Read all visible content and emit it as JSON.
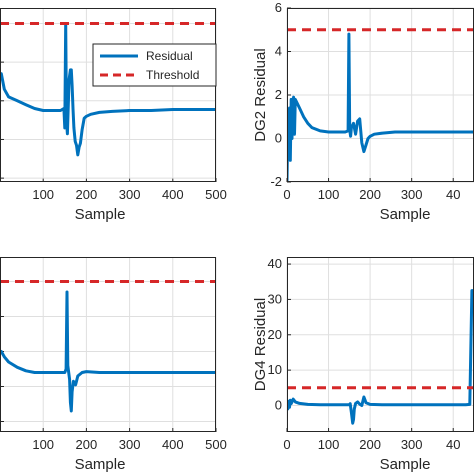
{
  "colors": {
    "residual": "#0072BD",
    "threshold": "#D62728",
    "grid": "#DFDFDF",
    "axis": "#262626"
  },
  "legend": {
    "residual_label": "Residual",
    "threshold_label": "Threshold",
    "placement": "top-right of upper-left panel"
  },
  "chart_data": [
    {
      "type": "line",
      "panel": "top-left",
      "xlabel": "Sample",
      "ylabel": "",
      "xlim": [
        0,
        500
      ],
      "xticks": [
        "100",
        "200",
        "300",
        "400",
        "500"
      ],
      "threshold": 6.0,
      "grid": true,
      "series": [
        {
          "name": "Residual",
          "x": [
            0,
            3,
            10,
            20,
            40,
            60,
            80,
            100,
            120,
            140,
            148,
            150,
            152,
            154,
            156,
            158,
            160,
            163,
            165,
            167,
            169,
            171,
            174,
            177,
            180,
            183,
            186,
            190,
            195,
            200,
            210,
            230,
            260,
            300,
            350,
            400,
            450,
            500
          ],
          "y": [
            3.2,
            3.4,
            2.6,
            2.2,
            2.0,
            1.8,
            1.6,
            1.5,
            1.5,
            1.5,
            1.6,
            0.6,
            6.0,
            0.9,
            0.3,
            1.8,
            3.1,
            3.6,
            3.6,
            2.8,
            1.6,
            0.6,
            -0.1,
            -0.3,
            -0.8,
            -0.4,
            -0.2,
            0.5,
            1.1,
            1.2,
            1.3,
            1.4,
            1.45,
            1.5,
            1.5,
            1.55,
            1.55,
            1.55
          ]
        },
        {
          "name": "Threshold",
          "x": [
            0,
            500
          ],
          "y": [
            6.0,
            6.0
          ]
        }
      ]
    },
    {
      "type": "line",
      "panel": "top-right",
      "xlabel": "Sample",
      "ylabel": "DG2 Residual",
      "xlim": [
        0,
        450
      ],
      "ylim": [
        -2,
        6
      ],
      "yticks": [
        "-2",
        "0",
        "2",
        "4",
        "6"
      ],
      "xticks": [
        "0",
        "100",
        "200",
        "300",
        "40"
      ],
      "threshold": 5.0,
      "grid": true,
      "series": [
        {
          "name": "Residual",
          "x": [
            0,
            2,
            4,
            6,
            8,
            10,
            12,
            14,
            16,
            18,
            20,
            25,
            30,
            40,
            50,
            60,
            80,
            100,
            120,
            140,
            147,
            149,
            151,
            153,
            155,
            160,
            165,
            170,
            175,
            180,
            185,
            190,
            195,
            200,
            210,
            230,
            260,
            300,
            350,
            400,
            450
          ],
          "y": [
            -2.0,
            0.5,
            -0.8,
            1.4,
            -1.0,
            1.8,
            0.0,
            1.7,
            1.9,
            0.2,
            1.8,
            1.6,
            1.4,
            1.0,
            0.7,
            0.5,
            0.35,
            0.3,
            0.3,
            0.3,
            0.35,
            4.8,
            0.4,
            0.1,
            0.5,
            0.7,
            0.2,
            0.8,
            0.9,
            -0.2,
            -0.6,
            -0.3,
            0.0,
            0.1,
            0.2,
            0.25,
            0.3,
            0.3,
            0.3,
            0.3,
            0.3
          ]
        },
        {
          "name": "Threshold",
          "x": [
            0,
            450
          ],
          "y": [
            5.0,
            5.0
          ]
        }
      ]
    },
    {
      "type": "line",
      "panel": "bottom-left",
      "xlabel": "Sample",
      "ylabel": "",
      "xlim": [
        0,
        500
      ],
      "xticks": [
        "100",
        "200",
        "300",
        "400",
        "500"
      ],
      "threshold": 6.0,
      "grid": true,
      "series": [
        {
          "name": "Residual",
          "x": [
            0,
            3,
            10,
            20,
            40,
            60,
            80,
            100,
            120,
            140,
            150,
            153,
            155,
            157,
            159,
            161,
            163,
            165,
            167,
            170,
            175,
            180,
            190,
            200,
            230,
            260,
            300,
            350,
            400,
            450,
            500
          ],
          "y": [
            1.9,
            2.0,
            1.7,
            1.4,
            1.1,
            0.9,
            0.8,
            0.8,
            0.8,
            0.8,
            0.8,
            1.0,
            5.4,
            1.2,
            0.8,
            0.4,
            -0.9,
            -1.4,
            -0.3,
            0.3,
            0.1,
            0.6,
            0.8,
            0.85,
            0.8,
            0.8,
            0.8,
            0.8,
            0.8,
            0.8,
            0.8
          ]
        },
        {
          "name": "Threshold",
          "x": [
            0,
            500
          ],
          "y": [
            6.0,
            6.0
          ]
        }
      ]
    },
    {
      "type": "line",
      "panel": "bottom-right",
      "xlabel": "Sample",
      "ylabel": "DG4 Residual",
      "xlim": [
        0,
        450
      ],
      "ylim": [
        -5,
        40
      ],
      "yticks": [
        "0",
        "10",
        "20",
        "30",
        "40"
      ],
      "xticks": [
        "0",
        "100",
        "200",
        "300",
        "40"
      ],
      "threshold": 5.0,
      "grid": true,
      "series": [
        {
          "name": "Residual",
          "x": [
            0,
            2,
            4,
            6,
            8,
            10,
            15,
            20,
            30,
            50,
            80,
            100,
            120,
            140,
            150,
            152,
            155,
            158,
            160,
            162,
            165,
            170,
            175,
            180,
            185,
            190,
            200,
            230,
            260,
            300,
            350,
            400,
            430,
            440,
            445,
            450
          ],
          "y": [
            0.8,
            -1.0,
            1.2,
            -0.5,
            1.5,
            0.5,
            1.8,
            1.0,
            0.6,
            0.3,
            0.2,
            0.2,
            0.2,
            0.2,
            0.2,
            0.5,
            -2.0,
            -5.0,
            -4.0,
            -1.0,
            0.6,
            1.0,
            0.4,
            0.0,
            2.4,
            0.8,
            0.3,
            0.2,
            0.2,
            0.2,
            0.2,
            0.2,
            0.2,
            0.3,
            32.5,
            32.5
          ]
        },
        {
          "name": "Threshold",
          "x": [
            0,
            450
          ],
          "y": [
            5.0,
            5.0
          ]
        }
      ]
    }
  ]
}
